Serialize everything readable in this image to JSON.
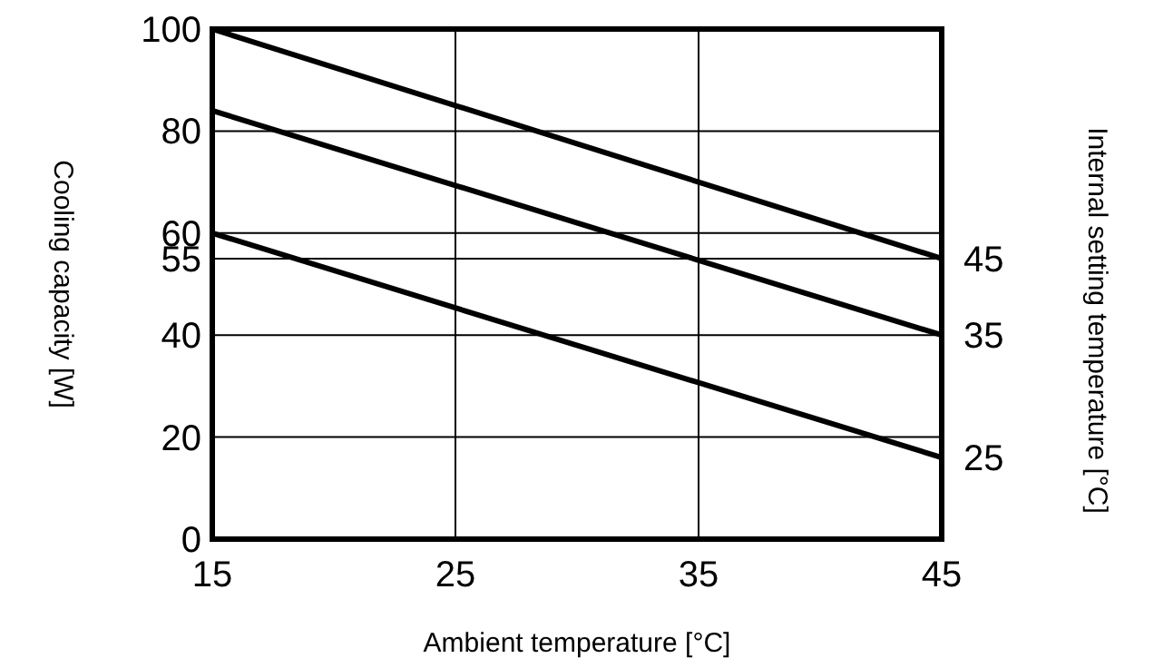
{
  "chart_data": {
    "type": "line",
    "xlabel": "Ambient temperature [°C]",
    "ylabel": "Cooling capacity [W]",
    "y2label": "Internal setting temperature [°C]",
    "x": [
      15,
      45
    ],
    "xlim": [
      15,
      45
    ],
    "xticks": [
      15,
      25,
      35,
      45
    ],
    "ylim": [
      0,
      100
    ],
    "yticks": [
      0,
      20,
      40,
      55,
      60,
      80,
      100
    ],
    "grid": true,
    "marker": "none",
    "line_style": "solid",
    "series": [
      {
        "name": "45",
        "color": "#000000",
        "values": [
          100,
          55
        ]
      },
      {
        "name": "35",
        "color": "#000000",
        "values": [
          84,
          40
        ]
      },
      {
        "name": "25",
        "color": "#000000",
        "values": [
          60,
          16
        ]
      }
    ]
  }
}
